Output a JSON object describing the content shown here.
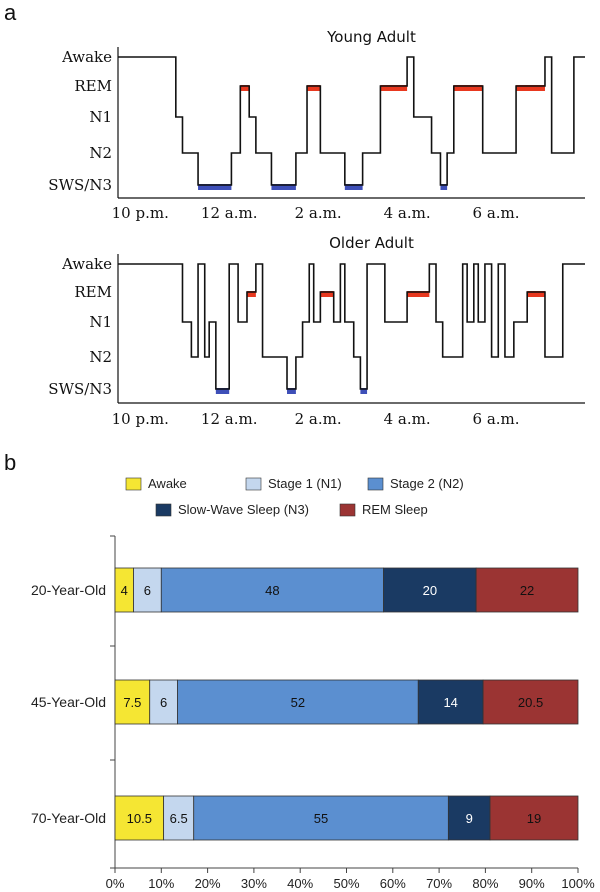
{
  "panel_a_label": "a",
  "panel_b_label": "b",
  "chart_data": [
    {
      "type": "line",
      "title": "Young Adult",
      "stage_labels": [
        "Awake",
        "REM",
        "N1",
        "N2",
        "SWS/N3"
      ],
      "x_tick_labels": [
        "10 p.m.",
        "12 a.m.",
        "2 a.m.",
        "4 a.m.",
        "6 a.m."
      ],
      "x_tick_values": [
        22,
        24,
        26,
        28,
        30
      ],
      "xlim": [
        21.5,
        32.0
      ],
      "colors": {
        "REM": "#e8381f",
        "SWS/N3": "#3e4fb8"
      },
      "steps": [
        [
          21.5,
          "Awake"
        ],
        [
          22.8,
          "N1"
        ],
        [
          22.95,
          "N2"
        ],
        [
          23.3,
          "SWS/N3"
        ],
        [
          24.05,
          "N2"
        ],
        [
          24.25,
          "REM"
        ],
        [
          24.45,
          "N1"
        ],
        [
          24.6,
          "N2"
        ],
        [
          24.95,
          "SWS/N3"
        ],
        [
          25.5,
          "N2"
        ],
        [
          25.75,
          "REM"
        ],
        [
          26.05,
          "N2"
        ],
        [
          26.6,
          "SWS/N3"
        ],
        [
          27.0,
          "N2"
        ],
        [
          27.4,
          "REM"
        ],
        [
          28.0,
          "Awake"
        ],
        [
          28.15,
          "N1"
        ],
        [
          28.55,
          "N2"
        ],
        [
          28.75,
          "SWS/N3"
        ],
        [
          28.9,
          "N2"
        ],
        [
          29.05,
          "REM"
        ],
        [
          29.7,
          "N2"
        ],
        [
          30.45,
          "REM"
        ],
        [
          31.1,
          "Awake"
        ],
        [
          31.25,
          "N2"
        ],
        [
          31.75,
          "Awake"
        ],
        [
          32.0,
          "Awake"
        ]
      ]
    },
    {
      "type": "line",
      "title": "Older Adult",
      "stage_labels": [
        "Awake",
        "REM",
        "N1",
        "N2",
        "SWS/N3"
      ],
      "x_tick_labels": [
        "10 p.m.",
        "12 a.m.",
        "2 a.m.",
        "4 a.m.",
        "6 a.m."
      ],
      "x_tick_values": [
        22,
        24,
        26,
        28,
        30
      ],
      "xlim": [
        21.5,
        32.0
      ],
      "colors": {
        "REM": "#e8381f",
        "SWS/N3": "#3e4fb8"
      },
      "steps": [
        [
          21.5,
          "Awake"
        ],
        [
          22.95,
          "N1"
        ],
        [
          23.15,
          "N2"
        ],
        [
          23.3,
          "Awake"
        ],
        [
          23.45,
          "N2"
        ],
        [
          23.55,
          "N1"
        ],
        [
          23.7,
          "SWS/N3"
        ],
        [
          24.0,
          "Awake"
        ],
        [
          24.2,
          "N1"
        ],
        [
          24.4,
          "REM"
        ],
        [
          24.6,
          "Awake"
        ],
        [
          24.75,
          "N2"
        ],
        [
          25.3,
          "SWS/N3"
        ],
        [
          25.5,
          "N2"
        ],
        [
          25.65,
          "N1"
        ],
        [
          25.8,
          "Awake"
        ],
        [
          25.9,
          "N1"
        ],
        [
          26.05,
          "REM"
        ],
        [
          26.35,
          "N1"
        ],
        [
          26.5,
          "Awake"
        ],
        [
          26.6,
          "N1"
        ],
        [
          26.8,
          "N2"
        ],
        [
          26.95,
          "SWS/N3"
        ],
        [
          27.1,
          "Awake"
        ],
        [
          27.5,
          "N1"
        ],
        [
          28.0,
          "REM"
        ],
        [
          28.5,
          "Awake"
        ],
        [
          28.65,
          "N1"
        ],
        [
          28.8,
          "N2"
        ],
        [
          29.25,
          "Awake"
        ],
        [
          29.35,
          "N1"
        ],
        [
          29.5,
          "Awake"
        ],
        [
          29.6,
          "N1"
        ],
        [
          29.75,
          "Awake"
        ],
        [
          29.9,
          "N2"
        ],
        [
          30.05,
          "Awake"
        ],
        [
          30.2,
          "N2"
        ],
        [
          30.4,
          "N1"
        ],
        [
          30.7,
          "REM"
        ],
        [
          31.1,
          "N2"
        ],
        [
          31.5,
          "Awake"
        ],
        [
          32.0,
          "Awake"
        ]
      ]
    },
    {
      "type": "bar",
      "orientation": "horizontal",
      "stacked": true,
      "categories": [
        "20-Year-Old",
        "45-Year-Old",
        "70-Year-Old"
      ],
      "series": [
        {
          "name": "Awake",
          "color": "#f5e633",
          "values": [
            4,
            7.5,
            10.5
          ],
          "labels": [
            "4",
            "7.5",
            "10.5"
          ]
        },
        {
          "name": "Stage 1 (N1)",
          "color": "#c4d7ee",
          "values": [
            6,
            6,
            6.5
          ],
          "labels": [
            "6",
            "6",
            "6.5"
          ]
        },
        {
          "name": "Stage 2 (N2)",
          "color": "#5b8fd0",
          "values": [
            48,
            52,
            55
          ],
          "labels": [
            "48",
            "52",
            "55"
          ]
        },
        {
          "name": "Slow-Wave Sleep (N3)",
          "color": "#1a3a63",
          "values": [
            20,
            14,
            9
          ],
          "labels": [
            "20",
            "14",
            "9"
          ]
        },
        {
          "name": "REM Sleep",
          "color": "#9b3433",
          "values": [
            22,
            20.5,
            19
          ],
          "labels": [
            "22",
            "20.5",
            "19"
          ]
        }
      ],
      "xlim": [
        0,
        100
      ],
      "x_tick_labels": [
        "0%",
        "10%",
        "20%",
        "30%",
        "40%",
        "50%",
        "60%",
        "70%",
        "80%",
        "90%",
        "100%"
      ],
      "legend_position": "top"
    }
  ]
}
